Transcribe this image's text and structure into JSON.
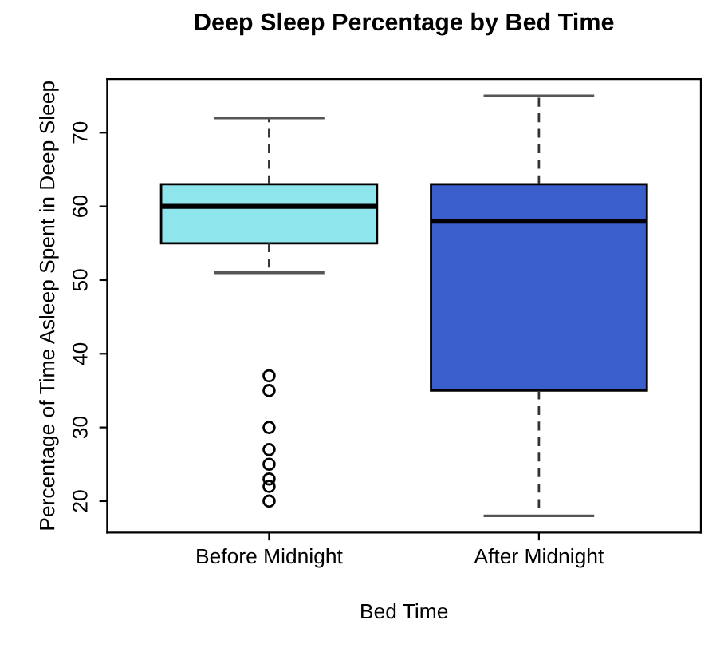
{
  "chart_data": {
    "type": "box",
    "title": "Deep Sleep Percentage by Bed Time",
    "xlabel": "Bed Time",
    "ylabel": "Percentage of Time Asleep Spent in Deep Sleep",
    "categories": [
      "Before Midnight",
      "After Midnight"
    ],
    "colors": [
      "#8fe5ec",
      "#3a5fcd"
    ],
    "boxes": [
      {
        "low": 51,
        "q1": 55,
        "median": 60,
        "q3": 63,
        "high": 72,
        "outliers": [
          37,
          35,
          30,
          27,
          25,
          23,
          22,
          20
        ]
      },
      {
        "low": 18,
        "q1": 35,
        "median": 58,
        "q3": 63,
        "high": 75
      }
    ],
    "ylim": [
      15.72,
      77.28
    ],
    "yticks": [
      20,
      30,
      40,
      50,
      60,
      70
    ],
    "grid": false,
    "legend": false
  }
}
